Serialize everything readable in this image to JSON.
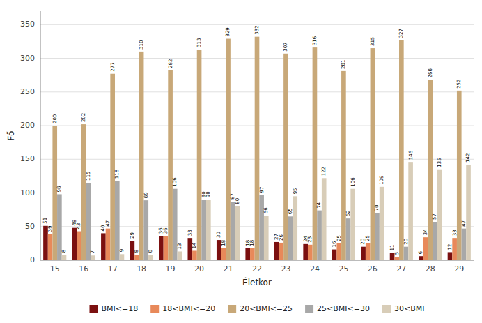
{
  "chart_data": {
    "type": "bar",
    "xlabel": "Életkor",
    "ylabel": "Fő",
    "categories": [
      "15",
      "16",
      "17",
      "18",
      "19",
      "20",
      "21",
      "22",
      "23",
      "24",
      "25",
      "26",
      "27",
      "28",
      "29"
    ],
    "series": [
      {
        "name": "BMI<=18",
        "color": "#7b1010",
        "values": [
          51,
          48,
          40,
          29,
          36,
          33,
          30,
          18,
          27,
          24,
          16,
          20,
          11,
          6,
          12
        ]
      },
      {
        "name": "18<BMI<=20",
        "color": "#e8895a",
        "values": [
          39,
          43,
          47,
          8,
          36,
          14,
          18,
          18,
          26,
          23,
          25,
          25,
          5,
          34,
          33
        ]
      },
      {
        "name": "20<BMI<=25",
        "color": "#c8a878",
        "values": [
          200,
          202,
          277,
          310,
          282,
          313,
          329,
          332,
          307,
          316,
          281,
          315,
          327,
          268,
          252
        ]
      },
      {
        "name": "25<BMI<=30",
        "color": "#a8a8a8",
        "values": [
          98,
          115,
          118,
          89,
          106,
          90,
          87,
          97,
          65,
          74,
          62,
          70,
          20,
          57,
          47
        ]
      },
      {
        "name": "30<BMI",
        "color": "#d8cdb8",
        "values": [
          8,
          7,
          9,
          8,
          13,
          90,
          80,
          66,
          95,
          122,
          106,
          109,
          146,
          135,
          142
        ]
      }
    ],
    "ylim": [
      0,
      370
    ],
    "yticks": [
      0,
      50,
      100,
      150,
      200,
      250,
      300,
      350
    ],
    "grid": true,
    "data_labels": true,
    "legend": "bottom"
  }
}
